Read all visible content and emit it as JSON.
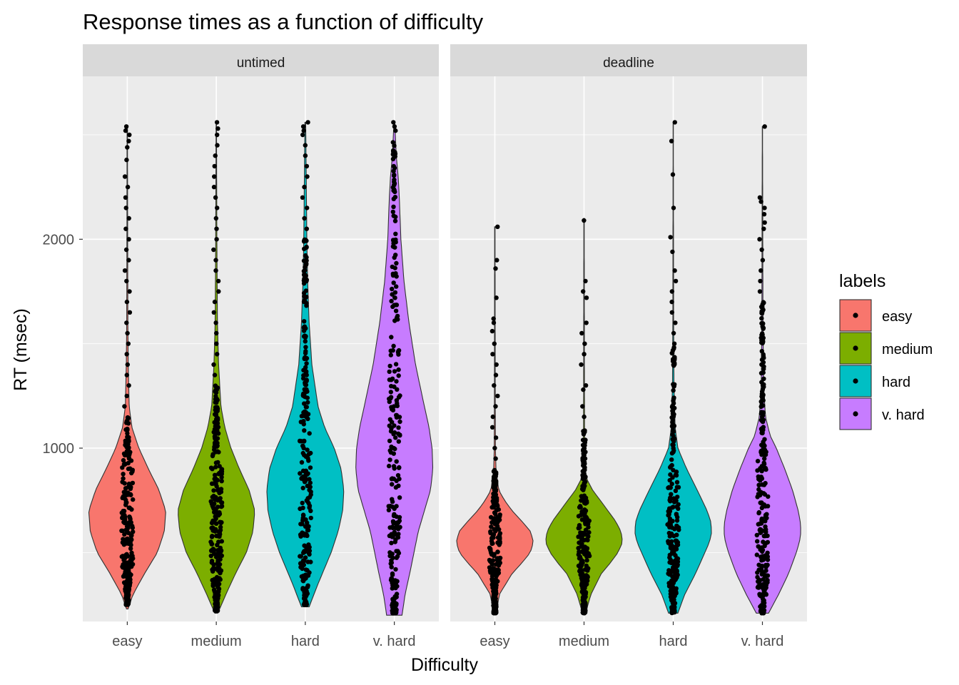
{
  "chart_data": {
    "type": "violin",
    "title": "Response times as a function of difficulty",
    "xlabel": "Difficulty",
    "ylabel": "RT (msec)",
    "ylim": [
      170,
      2780
    ],
    "y_ticks": [
      2000,
      1000
    ],
    "y_minor_ticks": [
      500,
      1500,
      2500
    ],
    "categories": [
      "easy",
      "medium",
      "hard",
      "v. hard"
    ],
    "colors": {
      "easy": "#F8766D",
      "medium": "#7CAE00",
      "hard": "#00BFC4",
      "v. hard": "#C77CFF"
    },
    "panel_background": "#EBEBEB",
    "strip_background": "#D9D9D9",
    "grid": true,
    "points_overlaid": true,
    "panels": [
      {
        "label": "untimed",
        "violins": [
          {
            "category": "easy",
            "min": 230,
            "max": 2540,
            "width": [
              [
                230,
                0.02
              ],
              [
                300,
                0.15
              ],
              [
                400,
                0.45
              ],
              [
                500,
                0.78
              ],
              [
                600,
                0.96
              ],
              [
                700,
                1.0
              ],
              [
                800,
                0.82
              ],
              [
                900,
                0.55
              ],
              [
                1000,
                0.3
              ],
              [
                1100,
                0.12
              ],
              [
                1200,
                0.05
              ],
              [
                1400,
                0.025
              ],
              [
                1600,
                0.015
              ],
              [
                2000,
                0.01
              ],
              [
                2540,
                0.005
              ]
            ]
          },
          {
            "category": "medium",
            "min": 210,
            "max": 2560,
            "width": [
              [
                210,
                0.04
              ],
              [
                300,
                0.25
              ],
              [
                400,
                0.5
              ],
              [
                500,
                0.78
              ],
              [
                600,
                0.95
              ],
              [
                700,
                1.0
              ],
              [
                800,
                0.85
              ],
              [
                900,
                0.6
              ],
              [
                1000,
                0.38
              ],
              [
                1100,
                0.22
              ],
              [
                1200,
                0.12
              ],
              [
                1400,
                0.06
              ],
              [
                1600,
                0.03
              ],
              [
                2000,
                0.015
              ],
              [
                2560,
                0.005
              ]
            ]
          },
          {
            "category": "hard",
            "min": 240,
            "max": 2560,
            "width": [
              [
                240,
                0.1
              ],
              [
                350,
                0.33
              ],
              [
                500,
                0.67
              ],
              [
                600,
                0.85
              ],
              [
                700,
                0.97
              ],
              [
                800,
                1.0
              ],
              [
                900,
                0.93
              ],
              [
                1000,
                0.75
              ],
              [
                1100,
                0.5
              ],
              [
                1200,
                0.33
              ],
              [
                1400,
                0.17
              ],
              [
                1600,
                0.1
              ],
              [
                1800,
                0.06
              ],
              [
                2000,
                0.04
              ],
              [
                2560,
                0.01
              ]
            ]
          },
          {
            "category": "v. hard",
            "min": 200,
            "max": 2560,
            "width": [
              [
                200,
                0.2
              ],
              [
                300,
                0.28
              ],
              [
                400,
                0.4
              ],
              [
                600,
                0.62
              ],
              [
                700,
                0.78
              ],
              [
                800,
                0.94
              ],
              [
                900,
                1.0
              ],
              [
                1000,
                0.98
              ],
              [
                1100,
                0.9
              ],
              [
                1200,
                0.78
              ],
              [
                1400,
                0.55
              ],
              [
                1600,
                0.38
              ],
              [
                1800,
                0.25
              ],
              [
                2000,
                0.17
              ],
              [
                2200,
                0.13
              ],
              [
                2300,
                0.1
              ],
              [
                2400,
                0.05
              ],
              [
                2560,
                0.01
              ]
            ]
          }
        ],
        "points": [
          {
            "category": "easy",
            "core_min": 250,
            "core_max": 1150,
            "outliers": [
              2540,
              2520,
              2500,
              2470,
              2440,
              2380,
              2300,
              2250,
              2200,
              2150,
              2100,
              2050,
              2000,
              1950,
              1900,
              1850,
              1800,
              1750,
              1700,
              1650,
              1600,
              1550,
              1500,
              1450,
              1400,
              1350,
              1300,
              1250,
              1200
            ]
          },
          {
            "category": "medium",
            "core_min": 220,
            "core_max": 1300,
            "outliers": [
              2560,
              2530,
              2500,
              2450,
              2400,
              2350,
              2300,
              2250,
              2200,
              2150,
              2100,
              2050,
              2000,
              1950,
              1900,
              1850,
              1800,
              1750,
              1700,
              1650,
              1600,
              1550,
              1500,
              1450,
              1400,
              1350
            ]
          },
          {
            "category": "hard",
            "core_min": 250,
            "core_max": 2000,
            "outliers": [
              2560,
              2540,
              2520,
              2500,
              2450,
              2400,
              2350,
              2300,
              2250,
              2200,
              2150,
              2100,
              2050
            ]
          },
          {
            "category": "v. hard",
            "core_min": 210,
            "core_max": 2480,
            "outliers": [
              2560,
              2540,
              2520
            ]
          }
        ]
      },
      {
        "label": "deadline",
        "violins": [
          {
            "category": "easy",
            "min": 210,
            "max": 2060,
            "width": [
              [
                210,
                0.03
              ],
              [
                300,
                0.12
              ],
              [
                400,
                0.45
              ],
              [
                450,
                0.7
              ],
              [
                500,
                0.92
              ],
              [
                550,
                1.0
              ],
              [
                600,
                0.93
              ],
              [
                650,
                0.7
              ],
              [
                700,
                0.45
              ],
              [
                750,
                0.25
              ],
              [
                800,
                0.1
              ],
              [
                900,
                0.03
              ],
              [
                1000,
                0.015
              ],
              [
                1300,
                0.01
              ],
              [
                2060,
                0.005
              ]
            ]
          },
          {
            "category": "medium",
            "min": 210,
            "max": 2100,
            "width": [
              [
                210,
                0.04
              ],
              [
                300,
                0.18
              ],
              [
                400,
                0.45
              ],
              [
                450,
                0.68
              ],
              [
                500,
                0.88
              ],
              [
                550,
                1.0
              ],
              [
                600,
                0.96
              ],
              [
                650,
                0.82
              ],
              [
                700,
                0.62
              ],
              [
                750,
                0.42
              ],
              [
                800,
                0.22
              ],
              [
                850,
                0.08
              ],
              [
                900,
                0.03
              ],
              [
                1000,
                0.015
              ],
              [
                1400,
                0.01
              ],
              [
                2100,
                0.005
              ]
            ]
          },
          {
            "category": "hard",
            "min": 210,
            "max": 2560,
            "width": [
              [
                210,
                0.12
              ],
              [
                300,
                0.3
              ],
              [
                400,
                0.58
              ],
              [
                500,
                0.82
              ],
              [
                550,
                0.94
              ],
              [
                600,
                1.0
              ],
              [
                650,
                0.97
              ],
              [
                700,
                0.88
              ],
              [
                800,
                0.62
              ],
              [
                900,
                0.35
              ],
              [
                1000,
                0.12
              ],
              [
                1100,
                0.05
              ],
              [
                1300,
                0.02
              ],
              [
                1600,
                0.01
              ],
              [
                2560,
                0.003
              ]
            ]
          },
          {
            "category": "v. hard",
            "min": 210,
            "max": 2540,
            "width": [
              [
                210,
                0.16
              ],
              [
                300,
                0.42
              ],
              [
                400,
                0.68
              ],
              [
                500,
                0.88
              ],
              [
                550,
                0.96
              ],
              [
                600,
                1.0
              ],
              [
                650,
                0.98
              ],
              [
                700,
                0.93
              ],
              [
                800,
                0.78
              ],
              [
                900,
                0.58
              ],
              [
                1000,
                0.36
              ],
              [
                1060,
                0.2
              ],
              [
                1150,
                0.08
              ],
              [
                1300,
                0.03
              ],
              [
                1600,
                0.015
              ],
              [
                2000,
                0.01
              ],
              [
                2540,
                0.003
              ]
            ]
          }
        ],
        "points": [
          {
            "category": "easy",
            "core_min": 210,
            "core_max": 900,
            "outliers": [
              2060,
              1900,
              1860,
              1720,
              1620,
              1600,
              1560,
              1500,
              1450,
              1400,
              1350,
              1300,
              1250,
              1200,
              1150,
              1100,
              1050,
              1000,
              950
            ]
          },
          {
            "category": "medium",
            "core_min": 210,
            "core_max": 1100,
            "outliers": [
              2090,
              1800,
              1750,
              1720,
              1600,
              1550,
              1500,
              1450,
              1400,
              1300,
              1280,
              1200,
              1150
            ]
          },
          {
            "category": "hard",
            "core_min": 210,
            "core_max": 1500,
            "outliers": [
              2560,
              2470,
              2310,
              2150,
              2010,
              1940,
              1850,
              1800,
              1750,
              1700,
              1650,
              1600,
              1550
            ]
          },
          {
            "category": "v. hard",
            "core_min": 210,
            "core_max": 1700,
            "outliers": [
              2540,
              2200,
              2180,
              2150,
              2120,
              2080,
              2050,
              2000,
              1950,
              1900,
              1850,
              1800,
              1750
            ]
          }
        ]
      }
    ],
    "legend": {
      "title": "labels",
      "position": "right",
      "entries": [
        "easy",
        "medium",
        "hard",
        "v. hard"
      ]
    }
  }
}
